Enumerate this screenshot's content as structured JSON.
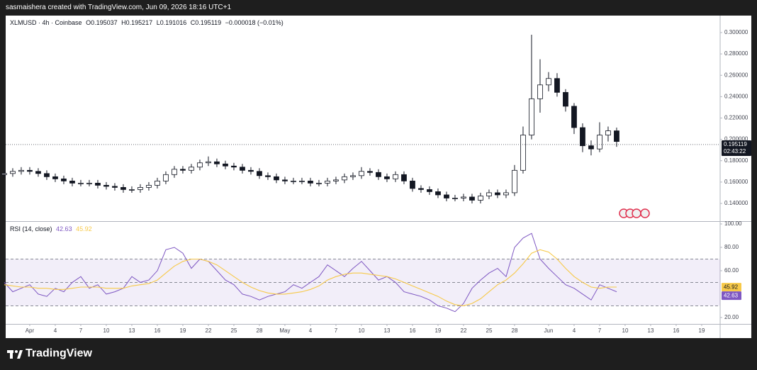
{
  "header": {
    "credit": "sasmaishera created with TradingView.com, Jun 09, 2026 18:16 UTC+1"
  },
  "footer": {
    "logo": "TradingView"
  },
  "chart_data": [
    {
      "type": "candlestick",
      "title": "XLMUSD · 4h · Coinbase",
      "ohlc": [
        {
          "label": "O",
          "value": 0.195037
        },
        {
          "label": "H",
          "value": 0.195217
        },
        {
          "label": "L",
          "value": 0.191016
        },
        {
          "label": "C",
          "value": 0.195119
        }
      ],
      "change": "−0.000018 (−0.01%)",
      "countdown": "02:43:22",
      "up_color": "#ffffff",
      "down_color": "#131722",
      "wick_color": "#131722",
      "x": [
        -3,
        -2,
        -1,
        0,
        1,
        2,
        3,
        4,
        5,
        6,
        7,
        8,
        9,
        10,
        11,
        12,
        13,
        14,
        15,
        16,
        17,
        18,
        19,
        20,
        21,
        22,
        23,
        24,
        25,
        26,
        27,
        28,
        29,
        30,
        31,
        32,
        33,
        34,
        35,
        36,
        37,
        38,
        39,
        40,
        41,
        42,
        43,
        44,
        45,
        46,
        47,
        48,
        49,
        50,
        51,
        52,
        53,
        54,
        55,
        56,
        57,
        58,
        59,
        60,
        61,
        62,
        63,
        64,
        65,
        66,
        67,
        68,
        69
      ],
      "open": [
        0.167,
        0.168,
        0.17,
        0.171,
        0.17,
        0.168,
        0.165,
        0.163,
        0.161,
        0.159,
        0.159,
        0.159,
        0.157,
        0.156,
        0.155,
        0.153,
        0.153,
        0.155,
        0.157,
        0.161,
        0.167,
        0.172,
        0.171,
        0.174,
        0.178,
        0.179,
        0.177,
        0.175,
        0.174,
        0.171,
        0.17,
        0.166,
        0.165,
        0.162,
        0.161,
        0.161,
        0.161,
        0.159,
        0.159,
        0.161,
        0.162,
        0.165,
        0.166,
        0.17,
        0.169,
        0.165,
        0.163,
        0.167,
        0.161,
        0.154,
        0.153,
        0.151,
        0.148,
        0.145,
        0.145,
        0.146,
        0.143,
        0.147,
        0.15,
        0.148,
        0.15,
        0.171,
        0.204,
        0.238,
        0.251,
        0.257,
        0.244,
        0.231,
        0.211,
        0.194,
        0.191,
        0.204,
        0.208
      ],
      "high": [
        0.171,
        0.173,
        0.174,
        0.174,
        0.173,
        0.171,
        0.168,
        0.166,
        0.164,
        0.162,
        0.162,
        0.162,
        0.16,
        0.159,
        0.158,
        0.156,
        0.158,
        0.16,
        0.164,
        0.17,
        0.175,
        0.175,
        0.177,
        0.181,
        0.184,
        0.182,
        0.18,
        0.178,
        0.177,
        0.174,
        0.173,
        0.169,
        0.168,
        0.165,
        0.164,
        0.164,
        0.164,
        0.162,
        0.164,
        0.165,
        0.168,
        0.169,
        0.174,
        0.173,
        0.172,
        0.168,
        0.17,
        0.17,
        0.164,
        0.157,
        0.156,
        0.154,
        0.151,
        0.148,
        0.149,
        0.149,
        0.15,
        0.153,
        0.153,
        0.153,
        0.176,
        0.212,
        0.298,
        0.275,
        0.263,
        0.262,
        0.247,
        0.234,
        0.215,
        0.199,
        0.216,
        0.212,
        0.211
      ],
      "low": [
        0.164,
        0.165,
        0.167,
        0.167,
        0.165,
        0.162,
        0.16,
        0.158,
        0.156,
        0.156,
        0.156,
        0.154,
        0.153,
        0.152,
        0.15,
        0.15,
        0.15,
        0.152,
        0.154,
        0.158,
        0.164,
        0.168,
        0.168,
        0.171,
        0.175,
        0.174,
        0.172,
        0.171,
        0.168,
        0.167,
        0.163,
        0.162,
        0.159,
        0.158,
        0.158,
        0.158,
        0.156,
        0.156,
        0.156,
        0.158,
        0.159,
        0.162,
        0.163,
        0.166,
        0.162,
        0.16,
        0.16,
        0.158,
        0.151,
        0.15,
        0.148,
        0.145,
        0.142,
        0.142,
        0.142,
        0.14,
        0.14,
        0.144,
        0.145,
        0.145,
        0.147,
        0.168,
        0.2,
        0.225,
        0.245,
        0.24,
        0.226,
        0.205,
        0.188,
        0.185,
        0.188,
        0.198,
        0.193
      ],
      "close": [
        0.168,
        0.17,
        0.171,
        0.17,
        0.168,
        0.165,
        0.163,
        0.161,
        0.159,
        0.159,
        0.159,
        0.157,
        0.156,
        0.155,
        0.153,
        0.153,
        0.155,
        0.157,
        0.161,
        0.167,
        0.172,
        0.171,
        0.174,
        0.178,
        0.179,
        0.177,
        0.175,
        0.174,
        0.171,
        0.17,
        0.166,
        0.165,
        0.162,
        0.161,
        0.161,
        0.161,
        0.159,
        0.159,
        0.161,
        0.162,
        0.165,
        0.166,
        0.17,
        0.169,
        0.165,
        0.163,
        0.167,
        0.161,
        0.154,
        0.153,
        0.151,
        0.148,
        0.145,
        0.145,
        0.146,
        0.143,
        0.147,
        0.15,
        0.148,
        0.15,
        0.171,
        0.204,
        0.238,
        0.251,
        0.257,
        0.244,
        0.231,
        0.211,
        0.194,
        0.191,
        0.204,
        0.208,
        0.198
      ],
      "xlim": [
        -2.83,
        81.17
      ],
      "xticks": [
        {
          "value": 0,
          "label": "Apr"
        },
        {
          "value": 3,
          "label": "4"
        },
        {
          "value": 6,
          "label": "7"
        },
        {
          "value": 9,
          "label": "10"
        },
        {
          "value": 12,
          "label": "13"
        },
        {
          "value": 15,
          "label": "16"
        },
        {
          "value": 18,
          "label": "19"
        },
        {
          "value": 21,
          "label": "22"
        },
        {
          "value": 24,
          "label": "25"
        },
        {
          "value": 27,
          "label": "28"
        },
        {
          "value": 30,
          "label": "May"
        },
        {
          "value": 33,
          "label": "4"
        },
        {
          "value": 36,
          "label": "7"
        },
        {
          "value": 39,
          "label": "10"
        },
        {
          "value": 42,
          "label": "13"
        },
        {
          "value": 45,
          "label": "16"
        },
        {
          "value": 48,
          "label": "19"
        },
        {
          "value": 51,
          "label": "22"
        },
        {
          "value": 54,
          "label": "25"
        },
        {
          "value": 57,
          "label": "28"
        },
        {
          "value": 61,
          "label": "Jun"
        },
        {
          "value": 64,
          "label": "4"
        },
        {
          "value": 67,
          "label": "7"
        },
        {
          "value": 70,
          "label": "10"
        },
        {
          "value": 73,
          "label": "13"
        },
        {
          "value": 76,
          "label": "16"
        },
        {
          "value": 79,
          "label": "19"
        }
      ],
      "ylim": [
        0.1234,
        0.3159
      ],
      "yticks": [
        {
          "value": 0.14,
          "label": "0.140000"
        },
        {
          "value": 0.16,
          "label": "0.160000"
        },
        {
          "value": 0.18,
          "label": "0.180000"
        },
        {
          "value": 0.2,
          "label": "0.200000"
        },
        {
          "value": 0.22,
          "label": "0.220000"
        },
        {
          "value": 0.24,
          "label": "0.240000"
        },
        {
          "value": 0.26,
          "label": "0.260000"
        },
        {
          "value": 0.28,
          "label": "0.280000"
        },
        {
          "value": 0.3,
          "label": "0.300000"
        }
      ],
      "grid": false
    },
    {
      "type": "line",
      "title": "RSI (14, close)",
      "series": [
        {
          "name": "RSI",
          "color": "#7e57c2",
          "last_value": 42.63,
          "values": [
            50,
            42,
            45,
            48,
            40,
            38,
            45,
            42,
            50,
            55,
            45,
            48,
            40,
            42,
            45,
            55,
            50,
            52,
            60,
            78,
            80,
            75,
            62,
            70,
            68,
            60,
            52,
            48,
            40,
            38,
            35,
            38,
            40,
            42,
            48,
            45,
            50,
            55,
            65,
            60,
            55,
            62,
            68,
            60,
            52,
            55,
            50,
            42,
            40,
            38,
            35,
            30,
            28,
            25,
            32,
            45,
            52,
            58,
            62,
            55,
            80,
            88,
            92,
            70,
            62,
            55,
            48,
            45,
            40,
            35,
            48,
            45,
            42
          ]
        },
        {
          "name": "RSI MA",
          "color": "#f7c948",
          "last_value": 45.92,
          "values": [
            48,
            47,
            46,
            46,
            45,
            45,
            44,
            44,
            45,
            46,
            46,
            46,
            45,
            45,
            45,
            47,
            48,
            49,
            52,
            58,
            64,
            68,
            70,
            70,
            68,
            65,
            60,
            55,
            50,
            46,
            43,
            41,
            40,
            40,
            41,
            42,
            44,
            47,
            52,
            55,
            57,
            58,
            58,
            57,
            56,
            55,
            53,
            50,
            47,
            44,
            41,
            38,
            34,
            31,
            30,
            32,
            36,
            42,
            48,
            52,
            58,
            66,
            75,
            78,
            76,
            70,
            62,
            55,
            50,
            46,
            45,
            46,
            46
          ]
        }
      ],
      "bands": [
        70,
        50,
        30
      ],
      "band_fill": "#7e57c2",
      "ylim": [
        14.5,
        101.8
      ],
      "yticks": [
        {
          "value": 20,
          "label": "20.00"
        },
        {
          "value": 60,
          "label": "60.00"
        },
        {
          "value": 80,
          "label": "80.00"
        },
        {
          "value": 100,
          "label": "100.00"
        }
      ]
    }
  ]
}
